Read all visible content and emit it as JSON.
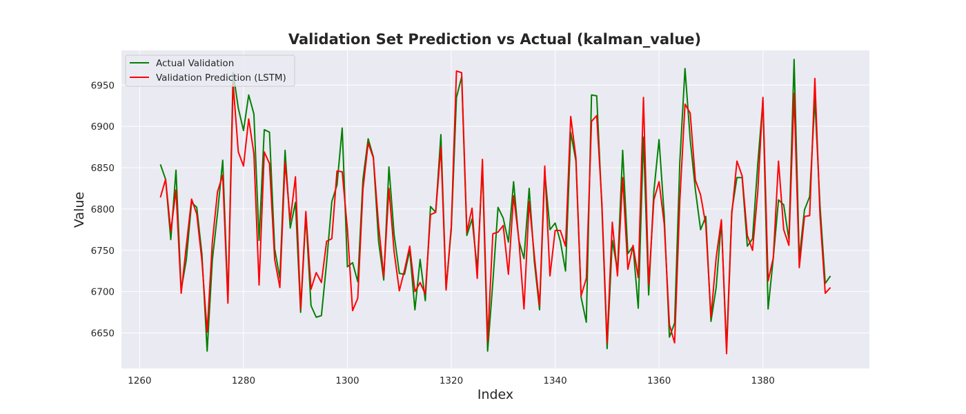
{
  "chart_data": {
    "type": "line",
    "title": "Validation Set Prediction vs Actual (kalman_value)",
    "xlabel": "Index",
    "ylabel": "Value",
    "xlim": [
      1256.5,
      1400.5
    ],
    "ylim": [
      6607,
      6992
    ],
    "xticks": [
      1260,
      1280,
      1300,
      1320,
      1340,
      1360,
      1380
    ],
    "yticks": [
      6650,
      6700,
      6750,
      6800,
      6850,
      6900,
      6950
    ],
    "grid": true,
    "legend_position": "top-left",
    "x": [
      1264,
      1265,
      1266,
      1267,
      1268,
      1269,
      1270,
      1271,
      1272,
      1273,
      1274,
      1275,
      1276,
      1277,
      1278,
      1279,
      1280,
      1281,
      1282,
      1283,
      1284,
      1285,
      1286,
      1287,
      1288,
      1289,
      1290,
      1291,
      1292,
      1293,
      1294,
      1295,
      1296,
      1297,
      1298,
      1299,
      1300,
      1301,
      1302,
      1303,
      1304,
      1305,
      1306,
      1307,
      1308,
      1309,
      1310,
      1311,
      1312,
      1313,
      1314,
      1315,
      1316,
      1317,
      1318,
      1319,
      1320,
      1321,
      1322,
      1323,
      1324,
      1325,
      1326,
      1327,
      1328,
      1329,
      1330,
      1331,
      1332,
      1333,
      1334,
      1335,
      1336,
      1337,
      1338,
      1339,
      1340,
      1341,
      1342,
      1343,
      1344,
      1345,
      1346,
      1347,
      1348,
      1349,
      1350,
      1351,
      1352,
      1353,
      1354,
      1355,
      1356,
      1357,
      1358,
      1359,
      1360,
      1361,
      1362,
      1363,
      1364,
      1365,
      1366,
      1367,
      1368,
      1369,
      1370,
      1371,
      1372,
      1373,
      1374,
      1375,
      1376,
      1377,
      1378,
      1379,
      1380,
      1381,
      1382,
      1383,
      1384,
      1385,
      1386,
      1387,
      1388,
      1389,
      1390,
      1391,
      1392,
      1393
    ],
    "series": [
      {
        "name": "Actual Validation",
        "color": "#008000",
        "values": [
          6854,
          6836,
          6763,
          6847,
          6702,
          6739,
          6808,
          6802,
          6745,
          6628,
          6738,
          6795,
          6859,
          6690,
          6965,
          6922,
          6895,
          6938,
          6915,
          6762,
          6896,
          6893,
          6752,
          6716,
          6871,
          6777,
          6808,
          6675,
          6792,
          6683,
          6669,
          6671,
          6735,
          6809,
          6829,
          6898,
          6730,
          6735,
          6712,
          6836,
          6885,
          6863,
          6761,
          6714,
          6851,
          6769,
          6722,
          6721,
          6750,
          6678,
          6739,
          6689,
          6803,
          6796,
          6890,
          6703,
          6775,
          6935,
          6960,
          6768,
          6788,
          6727,
          6852,
          6628,
          6711,
          6802,
          6789,
          6760,
          6833,
          6762,
          6740,
          6825,
          6736,
          6678,
          6845,
          6775,
          6783,
          6761,
          6725,
          6893,
          6858,
          6693,
          6663,
          6938,
          6937,
          6802,
          6631,
          6762,
          6726,
          6871,
          6746,
          6755,
          6680,
          6887,
          6696,
          6821,
          6884,
          6792,
          6645,
          6662,
          6857,
          6970,
          6884,
          6823,
          6775,
          6791,
          6664,
          6705,
          6786,
          6631,
          6797,
          6838,
          6838,
          6755,
          6764,
          6854,
          6931,
          6679,
          6741,
          6811,
          6805,
          6763,
          6981,
          6740,
          6799,
          6815,
          6933,
          6803,
          6710,
          6719
        ]
      },
      {
        "name": "Validation Prediction (LSTM)",
        "color": "#ff0000",
        "values": [
          6814,
          6836,
          6773,
          6823,
          6698,
          6756,
          6812,
          6794,
          6737,
          6651,
          6760,
          6821,
          6841,
          6686,
          6952,
          6869,
          6852,
          6909,
          6867,
          6708,
          6869,
          6855,
          6739,
          6705,
          6857,
          6786,
          6839,
          6679,
          6797,
          6703,
          6723,
          6711,
          6761,
          6764,
          6846,
          6845,
          6776,
          6677,
          6692,
          6824,
          6880,
          6862,
          6781,
          6718,
          6825,
          6748,
          6701,
          6726,
          6755,
          6700,
          6711,
          6697,
          6793,
          6796,
          6875,
          6702,
          6779,
          6967,
          6965,
          6772,
          6801,
          6716,
          6860,
          6640,
          6770,
          6772,
          6780,
          6721,
          6816,
          6764,
          6679,
          6809,
          6743,
          6683,
          6852,
          6719,
          6774,
          6774,
          6755,
          6912,
          6862,
          6695,
          6716,
          6906,
          6913,
          6807,
          6638,
          6784,
          6719,
          6838,
          6727,
          6756,
          6717,
          6935,
          6708,
          6811,
          6833,
          6782,
          6660,
          6638,
          6810,
          6927,
          6916,
          6835,
          6817,
          6781,
          6669,
          6741,
          6787,
          6625,
          6793,
          6858,
          6840,
          6768,
          6750,
          6820,
          6935,
          6713,
          6741,
          6858,
          6775,
          6756,
          6940,
          6729,
          6791,
          6792,
          6958,
          6791,
          6698,
          6705
        ]
      }
    ]
  }
}
